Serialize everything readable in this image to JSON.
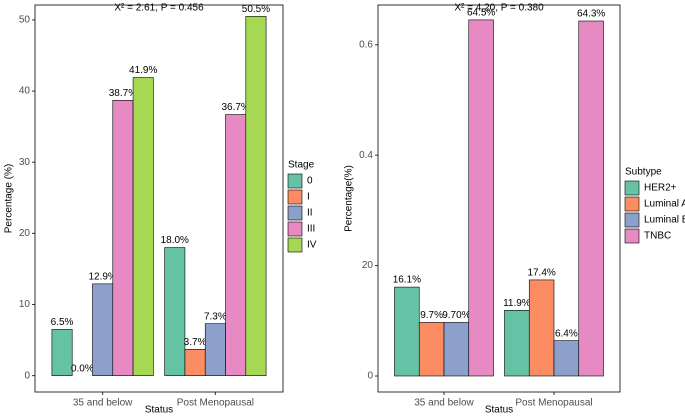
{
  "chart_data": [
    {
      "type": "bar",
      "title": "X² = 2.61, P = 0.456",
      "x_label": "Status",
      "y_label": "Percentage (%)",
      "categories": [
        "35 and below",
        "Post Menopausal"
      ],
      "legend_title": "Stage",
      "legend": "right",
      "series": [
        {
          "name": "0",
          "color": "#66c2a5",
          "values": [
            6.5,
            18.0
          ],
          "value_labels": [
            "6.5%",
            "18.0%"
          ]
        },
        {
          "name": "I",
          "color": "#fc8d62",
          "values": [
            0,
            3.7
          ],
          "value_labels": [
            "0.0%",
            "3.7%"
          ]
        },
        {
          "name": "II",
          "color": "#8da0cb",
          "values": [
            12.9,
            7.3
          ],
          "value_labels": [
            "12.9%",
            "7.3%"
          ]
        },
        {
          "name": "III",
          "color": "#e78ac3",
          "values": [
            38.7,
            36.7
          ],
          "value_labels": [
            "38.7%",
            "36.7%"
          ]
        },
        {
          "name": "IV",
          "color": "#a6d854",
          "values": [
            41.9,
            50.5
          ],
          "value_labels": [
            "41.9%",
            "50.5%"
          ]
        }
      ],
      "ylim": [
        -2.3,
        52.1
      ],
      "yticks": [
        0,
        10,
        20,
        30,
        40,
        50
      ]
    },
    {
      "type": "bar",
      "title": "X² = 4.20, P = 0.380",
      "x_label": "Status",
      "y_label": "Percentage(%)",
      "categories": [
        "35 and below",
        "Post Menopausal"
      ],
      "legend_title": "Subtype",
      "legend": "right",
      "series": [
        {
          "name": "HER2+",
          "color": "#66c2a5",
          "values": [
            16.1,
            11.9
          ],
          "value_labels": [
            "16.1%",
            "11.9%"
          ]
        },
        {
          "name": "Luminal A",
          "color": "#fc8d62",
          "values": [
            9.7,
            17.4
          ],
          "value_labels": [
            "9.7%",
            "17.4%"
          ]
        },
        {
          "name": "Luminal B",
          "color": "#8da0cb",
          "values": [
            9.7,
            6.4
          ],
          "value_labels": [
            "9.70%",
            "6.4%"
          ]
        },
        {
          "name": "TNBC",
          "color": "#e78ac3",
          "values": [
            64.5,
            64.3
          ],
          "value_labels": [
            "64.5%",
            "64.3%"
          ]
        }
      ],
      "ylim": [
        -2.9,
        67.2
      ],
      "yticks": [
        0,
        20,
        {
          "value": 40,
          "label": "0.4"
        },
        {
          "value": 60,
          "label": "0.6"
        }
      ]
    }
  ]
}
